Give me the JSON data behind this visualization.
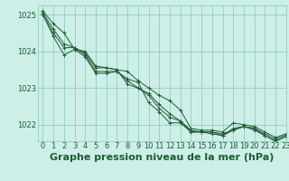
{
  "title": "Graphe pression niveau de la mer (hPa)",
  "background_color": "#ceeee8",
  "grid_color": "#88c8b8",
  "line_color": "#1e5c32",
  "marker_color": "#1e5c32",
  "xlim": [
    -0.5,
    23
  ],
  "ylim": [
    1021.55,
    1025.25
  ],
  "yticks": [
    1022,
    1023,
    1024,
    1025
  ],
  "xticks": [
    0,
    1,
    2,
    3,
    4,
    5,
    6,
    7,
    8,
    9,
    10,
    11,
    12,
    13,
    14,
    15,
    16,
    17,
    18,
    19,
    20,
    21,
    22,
    23
  ],
  "series": [
    [
      1025.1,
      1024.75,
      1024.5,
      1024.05,
      1024.0,
      1023.6,
      1023.55,
      1023.5,
      1023.45,
      1023.2,
      1023.0,
      1022.8,
      1022.65,
      1022.4,
      1021.9,
      1021.85,
      1021.85,
      1021.8,
      1022.05,
      1022.0,
      1021.95,
      1021.8,
      1021.65,
      1021.75
    ],
    [
      1025.05,
      1024.6,
      1024.2,
      1024.1,
      1023.95,
      1023.55,
      1023.55,
      1023.5,
      1023.1,
      1023.0,
      1022.85,
      1022.55,
      1022.3,
      1022.1,
      1021.85,
      1021.8,
      1021.8,
      1021.75,
      1021.85,
      1021.95,
      1021.9,
      1021.75,
      1021.6,
      1021.72
    ],
    [
      1025.0,
      1024.5,
      1024.1,
      1024.1,
      1023.9,
      1023.45,
      1023.45,
      1023.45,
      1023.2,
      1023.0,
      1022.8,
      1022.45,
      1022.2,
      1022.1,
      1021.8,
      1021.8,
      1021.8,
      1021.7,
      1021.9,
      1021.95,
      1021.85,
      1021.7,
      1021.55,
      1021.68
    ],
    [
      1025.0,
      1024.4,
      1023.9,
      1024.05,
      1023.85,
      1023.4,
      1023.4,
      1023.45,
      1023.25,
      1023.15,
      1022.6,
      1022.35,
      1022.05,
      1022.05,
      1021.8,
      1021.8,
      1021.75,
      1021.7,
      1021.85,
      1021.95,
      1021.9,
      1021.7,
      1021.55,
      1021.68
    ]
  ],
  "title_fontsize": 8,
  "tick_fontsize": 6,
  "title_color": "#1e5c32",
  "tick_color": "#1e5c32"
}
